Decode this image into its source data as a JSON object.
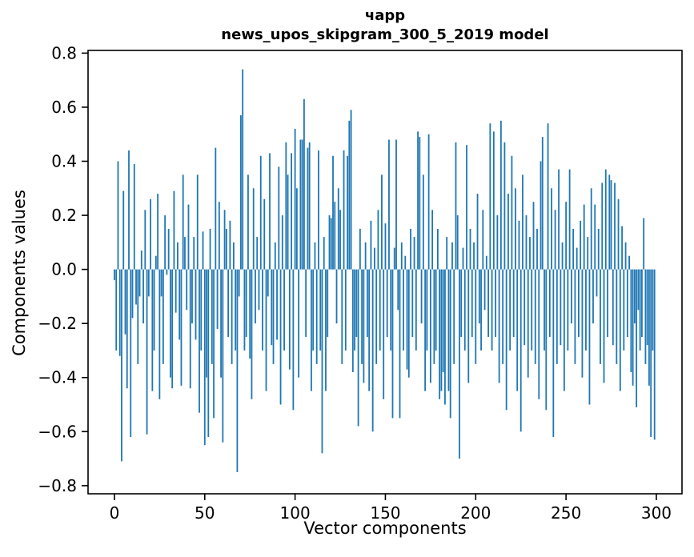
{
  "title": {
    "line1": "чарр",
    "line2": "news_upos_skipgram_300_5_2019 model"
  },
  "axes": {
    "xlabel": "Vector components",
    "ylabel": "Components values"
  },
  "colors": {
    "bar": "#1f77b4",
    "axis": "#000000",
    "background": "#ffffff"
  },
  "chart_data": {
    "type": "bar",
    "title": "чарр\nnews_upos_skipgram_300_5_2019 model",
    "xlabel": "Vector components",
    "ylabel": "Components values",
    "x_range": [
      0,
      299
    ],
    "xlim": [
      -14.6,
      314.2
    ],
    "ylim": [
      -0.83,
      0.81
    ],
    "xticks": [
      0,
      50,
      100,
      150,
      200,
      250,
      300
    ],
    "xtick_labels": [
      "0",
      "50",
      "100",
      "150",
      "200",
      "250",
      "300"
    ],
    "yticks": [
      -0.8,
      -0.6,
      -0.4,
      -0.2,
      0.0,
      0.2,
      0.4,
      0.6,
      0.8
    ],
    "ytick_labels": [
      "−0.8",
      "−0.6",
      "−0.4",
      "−0.2",
      "0.0",
      "0.2",
      "0.4",
      "0.6",
      "0.8"
    ],
    "grid": false,
    "legend": null,
    "bar_color": "#1f77b4",
    "bar_width": 0.8,
    "values": [
      -0.04,
      -0.3,
      0.4,
      -0.32,
      -0.71,
      0.29,
      -0.24,
      -0.44,
      0.44,
      -0.62,
      -0.18,
      0.39,
      -0.13,
      -0.35,
      -0.1,
      0.07,
      -0.2,
      0.22,
      -0.61,
      -0.1,
      0.26,
      -0.45,
      -0.3,
      0.05,
      0.28,
      -0.48,
      -0.1,
      -0.35,
      0.2,
      -0.02,
      0.15,
      -0.4,
      -0.44,
      0.29,
      -0.16,
      0.1,
      -0.26,
      -0.43,
      0.35,
      0.12,
      -0.15,
      0.24,
      -0.44,
      -0.2,
      0.12,
      -0.26,
      0.35,
      -0.53,
      -0.3,
      0.14,
      -0.65,
      -0.4,
      -0.62,
      0.15,
      -0.35,
      -0.55,
      0.45,
      -0.22,
      0.25,
      -0.4,
      -0.64,
      0.22,
      0.15,
      -0.25,
      0.18,
      -0.35,
      0.1,
      -0.3,
      -0.75,
      -0.1,
      0.57,
      0.74,
      -0.3,
      -0.25,
      0.35,
      -0.33,
      -0.48,
      0.3,
      -0.2,
      0.12,
      -0.15,
      0.42,
      -0.3,
      0.26,
      -0.45,
      -0.1,
      0.43,
      -0.28,
      -0.35,
      0.1,
      -0.26,
      0.38,
      -0.5,
      0.2,
      -0.3,
      0.47,
      0.35,
      -0.37,
      0.43,
      -0.52,
      0.52,
      0.3,
      -0.4,
      0.48,
      0.48,
      0.63,
      -0.25,
      0.45,
      0.47,
      -0.45,
      -0.3,
      0.1,
      -0.35,
      0.44,
      -0.3,
      -0.68,
      0.12,
      -0.45,
      -0.25,
      0.2,
      0.19,
      0.42,
      0.25,
      -0.2,
      0.3,
      0.22,
      -0.35,
      0.44,
      -0.3,
      0.42,
      0.55,
      0.59,
      -0.38,
      -0.3,
      -0.25,
      -0.58,
      0.15,
      -0.35,
      -0.42,
      0.1,
      -0.25,
      -0.45,
      0.18,
      -0.6,
      0.08,
      -0.35,
      0.22,
      -0.3,
      0.35,
      -0.48,
      0.17,
      -0.25,
      0.48,
      -0.3,
      -0.55,
      0.08,
      0.48,
      -0.15,
      -0.55,
      0.1,
      -0.3,
      0.05,
      -0.37,
      -0.4,
      0.15,
      -0.25,
      0.12,
      -0.3,
      0.51,
      0.49,
      -0.2,
      0.35,
      -0.45,
      -0.3,
      0.5,
      -0.42,
      0.22,
      -0.35,
      -0.3,
      0.15,
      -0.48,
      -0.45,
      -0.38,
      -0.5,
      0.12,
      -0.45,
      -0.55,
      0.1,
      -0.35,
      0.47,
      0.2,
      -0.7,
      -0.25,
      0.08,
      -0.3,
      0.46,
      -0.42,
      0.15,
      -0.25,
      0.1,
      -0.35,
      0.28,
      -0.2,
      -0.3,
      0.22,
      -0.15,
      0.05,
      -0.25,
      0.54,
      -0.3,
      0.51,
      -0.25,
      0.2,
      -0.42,
      0.55,
      -0.35,
      0.47,
      -0.52,
      0.28,
      -0.3,
      0.42,
      -0.25,
      0.3,
      -0.45,
      0.18,
      -0.6,
      0.35,
      -0.28,
      0.2,
      -0.4,
      0.12,
      -0.3,
      0.25,
      -0.35,
      0.15,
      -0.48,
      0.4,
      0.49,
      -0.3,
      -0.52,
      0.54,
      -0.25,
      0.3,
      -0.62,
      0.22,
      -0.35,
      0.37,
      -0.28,
      0.1,
      -0.45,
      0.25,
      -0.3,
      0.37,
      -0.2,
      0.15,
      -0.35,
      0.08,
      -0.25,
      0.18,
      -0.4,
      0.24,
      -0.3,
      0.12,
      -0.5,
      0.3,
      -0.2,
      0.24,
      -0.1,
      0.15,
      -0.35,
      0.32,
      -0.42,
      0.37,
      -0.25,
      0.35,
      0.33,
      -0.28,
      0.32,
      -0.35,
      0.26,
      -0.45,
      0.16,
      -0.3,
      0.1,
      -0.25,
      0.05,
      -0.38,
      -0.43,
      -0.2,
      -0.51,
      -0.15,
      -0.3,
      -0.25,
      0.19,
      -0.35,
      -0.28,
      -0.43,
      -0.62,
      -0.3,
      -0.63
    ]
  }
}
